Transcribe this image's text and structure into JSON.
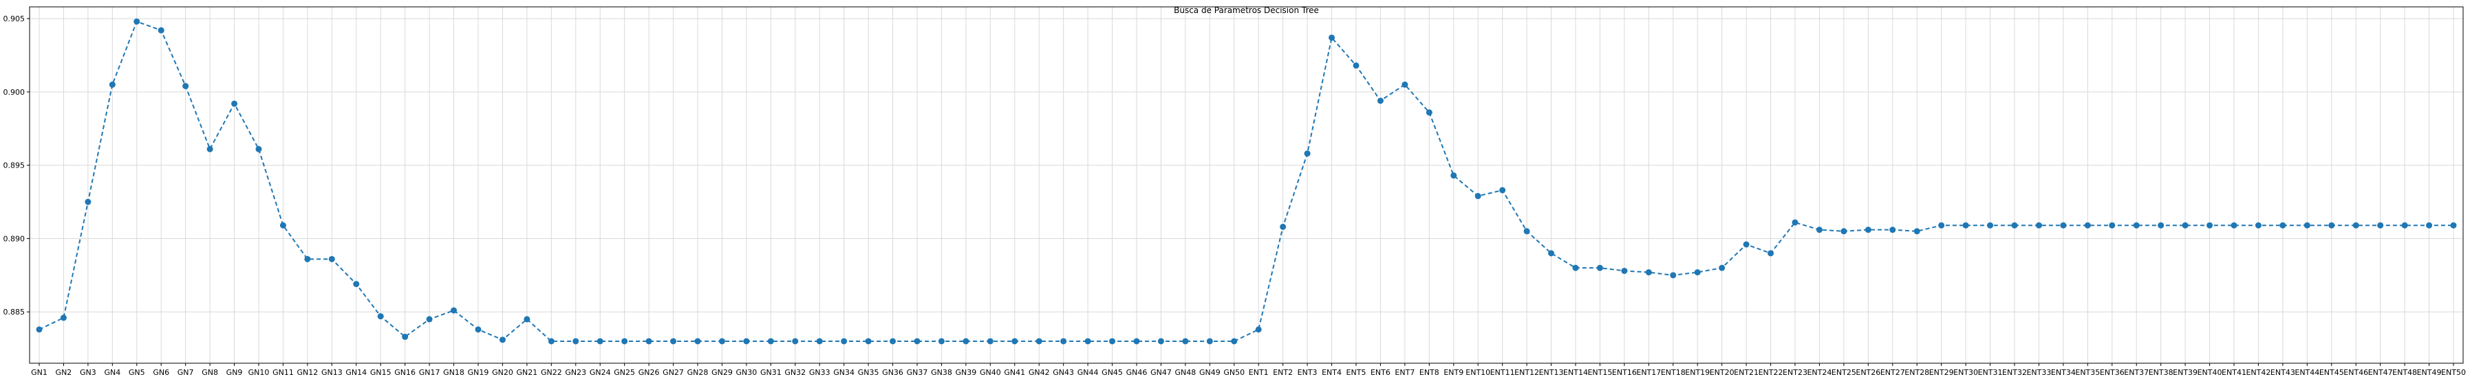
{
  "chart_data": {
    "type": "line",
    "title": "Busca de Parametros Decision Tree",
    "xlabel": "",
    "ylabel": "",
    "grid": true,
    "line_style": "dashed",
    "marker": "circle",
    "colors": {
      "series": "#1f77b4",
      "grid": "#d9d9d9",
      "axis": "#000000"
    },
    "ylim": [
      0.8815,
      0.9058
    ],
    "yticks": [
      0.885,
      0.89,
      0.895,
      0.9,
      0.905
    ],
    "ytick_labels": [
      "0.885",
      "0.890",
      "0.895",
      "0.900",
      "0.905"
    ],
    "categories": [
      "GN1",
      "GN2",
      "GN3",
      "GN4",
      "GN5",
      "GN6",
      "GN7",
      "GN8",
      "GN9",
      "GN10",
      "GN11",
      "GN12",
      "GN13",
      "GN14",
      "GN15",
      "GN16",
      "GN17",
      "GN18",
      "GN19",
      "GN20",
      "GN21",
      "GN22",
      "GN23",
      "GN24",
      "GN25",
      "GN26",
      "GN27",
      "GN28",
      "GN29",
      "GN30",
      "GN31",
      "GN32",
      "GN33",
      "GN34",
      "GN35",
      "GN36",
      "GN37",
      "GN38",
      "GN39",
      "GN40",
      "GN41",
      "GN42",
      "GN43",
      "GN44",
      "GN45",
      "GN46",
      "GN47",
      "GN48",
      "GN49",
      "GN50",
      "ENT1",
      "ENT2",
      "ENT3",
      "ENT4",
      "ENT5",
      "ENT6",
      "ENT7",
      "ENT8",
      "ENT9",
      "ENT10",
      "ENT11",
      "ENT12",
      "ENT13",
      "ENT14",
      "ENT15",
      "ENT16",
      "ENT17",
      "ENT18",
      "ENT19",
      "ENT20",
      "ENT21",
      "ENT22",
      "ENT23",
      "ENT24",
      "ENT25",
      "ENT26",
      "ENT27",
      "ENT28",
      "ENT29",
      "ENT30",
      "ENT31",
      "ENT32",
      "ENT33",
      "ENT34",
      "ENT35",
      "ENT36",
      "ENT37",
      "ENT38",
      "ENT39",
      "ENT40",
      "ENT41",
      "ENT42",
      "ENT43",
      "ENT44",
      "ENT45",
      "ENT46",
      "ENT47",
      "ENT48",
      "ENT49",
      "ENT50"
    ],
    "series": [
      {
        "values": [
          0.8838,
          0.8846,
          0.8925,
          0.9005,
          0.9048,
          0.9042,
          0.9004,
          0.8961,
          0.8992,
          0.8961,
          0.8909,
          0.8886,
          0.8886,
          0.8869,
          0.8847,
          0.8833,
          0.8845,
          0.8851,
          0.8838,
          0.8831,
          0.8845,
          0.883,
          0.883,
          0.883,
          0.883,
          0.883,
          0.883,
          0.883,
          0.883,
          0.883,
          0.883,
          0.883,
          0.883,
          0.883,
          0.883,
          0.883,
          0.883,
          0.883,
          0.883,
          0.883,
          0.883,
          0.883,
          0.883,
          0.883,
          0.883,
          0.883,
          0.883,
          0.883,
          0.883,
          0.883,
          0.8838,
          0.8908,
          0.8958,
          0.9037,
          0.9018,
          0.8994,
          0.9005,
          0.8986,
          0.8943,
          0.8929,
          0.8933,
          0.8905,
          0.889,
          0.888,
          0.888,
          0.8878,
          0.8877,
          0.8875,
          0.8877,
          0.888,
          0.8896,
          0.889,
          0.8911,
          0.8906,
          0.8905,
          0.8906,
          0.8906,
          0.8905,
          0.8909,
          0.8909,
          0.8909,
          0.8909,
          0.8909,
          0.8909,
          0.8909,
          0.8909,
          0.8909,
          0.8909,
          0.8909,
          0.8909,
          0.8909,
          0.8909,
          0.8909,
          0.8909,
          0.8909,
          0.8909,
          0.8909,
          0.8909,
          0.8909,
          0.8909
        ]
      }
    ]
  }
}
